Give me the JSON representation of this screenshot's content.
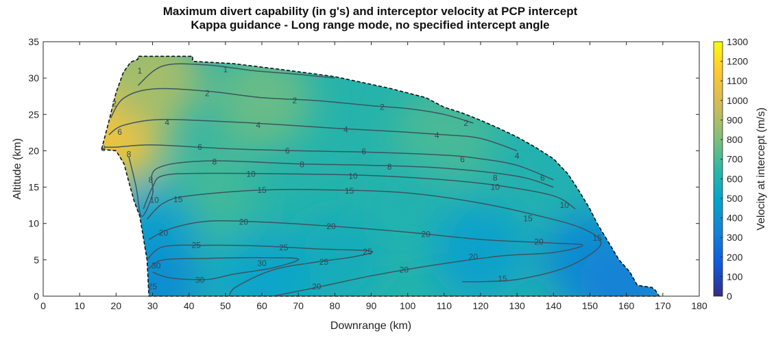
{
  "chart_data": {
    "type": "heatmap",
    "title": "Maximum divert capability (in g's) and interceptor velocity at PCP intercept",
    "subtitle": "Kappa guidance - Long range mode, no specified intercept angle",
    "xlabel": "Downrange (km)",
    "ylabel": "Altitude (km)",
    "xlim": [
      0,
      180
    ],
    "ylim": [
      0,
      35
    ],
    "xticks": [
      "0",
      "10",
      "20",
      "30",
      "40",
      "50",
      "60",
      "70",
      "80",
      "90",
      "100",
      "110",
      "120",
      "130",
      "140",
      "150",
      "160",
      "170",
      "180"
    ],
    "yticks": [
      "0",
      "5",
      "10",
      "15",
      "20",
      "25",
      "30",
      "35"
    ],
    "grid": false,
    "colorbar": {
      "label": "Velocity at intercept (m/s)",
      "range": [
        0,
        1300
      ],
      "ticks": [
        "0",
        "100",
        "200",
        "300",
        "400",
        "500",
        "600",
        "700",
        "800",
        "900",
        "1000",
        "1100",
        "1200",
        "1300"
      ],
      "colormap": "parula"
    },
    "coverage_boundary": [
      [
        16,
        20.2
      ],
      [
        18,
        24
      ],
      [
        20,
        28
      ],
      [
        22,
        30.8
      ],
      [
        24,
        32.2
      ],
      [
        26,
        32.6
      ],
      [
        26,
        33
      ],
      [
        41,
        33
      ],
      [
        41,
        32.3
      ],
      [
        52,
        32
      ],
      [
        65,
        31.2
      ],
      [
        80,
        30.2
      ],
      [
        95,
        28.6
      ],
      [
        105,
        27.3
      ],
      [
        110,
        26
      ],
      [
        115,
        25.2
      ],
      [
        120,
        24.2
      ],
      [
        125,
        23.1
      ],
      [
        130,
        21.9
      ],
      [
        135,
        20.5
      ],
      [
        140,
        18.9
      ],
      [
        144,
        16.8
      ],
      [
        147,
        14.5
      ],
      [
        150,
        12
      ],
      [
        152,
        10
      ],
      [
        155,
        7.5
      ],
      [
        158,
        5
      ],
      [
        161,
        3.3
      ],
      [
        163,
        1.5
      ],
      [
        167,
        1.2
      ],
      [
        168,
        0.8
      ],
      [
        169,
        0
      ],
      [
        29,
        0
      ],
      [
        28.5,
        5
      ],
      [
        27.5,
        8
      ],
      [
        26.5,
        11
      ],
      [
        25,
        13
      ],
      [
        23.6,
        15.5
      ],
      [
        22.2,
        18.2
      ],
      [
        20,
        20
      ],
      [
        18,
        20.1
      ],
      [
        16,
        20.2
      ]
    ],
    "velocity_anchors": [
      {
        "x": 22,
        "y": 26,
        "value": 1060
      },
      {
        "x": 19,
        "y": 22,
        "value": 1080
      },
      {
        "x": 30,
        "y": 30,
        "value": 880
      },
      {
        "x": 60,
        "y": 27,
        "value": 760
      },
      {
        "x": 110,
        "y": 22,
        "value": 700
      },
      {
        "x": 140,
        "y": 17,
        "value": 600
      },
      {
        "x": 45,
        "y": 15,
        "value": 690
      },
      {
        "x": 100,
        "y": 12,
        "value": 610
      },
      {
        "x": 30,
        "y": 8,
        "value": 480
      },
      {
        "x": 80,
        "y": 5,
        "value": 560
      },
      {
        "x": 60,
        "y": 2,
        "value": 500
      },
      {
        "x": 120,
        "y": 6,
        "value": 480
      },
      {
        "x": 150,
        "y": 5,
        "value": 380
      },
      {
        "x": 160,
        "y": 1,
        "value": 330
      },
      {
        "x": 30,
        "y": 1,
        "value": 390
      }
    ],
    "contours": [
      {
        "level": "1",
        "points": [
          [
            26,
            29
          ],
          [
            33,
            31.7
          ],
          [
            45,
            31.8
          ],
          [
            58,
            31
          ],
          [
            68,
            30.6
          ],
          [
            80,
            30
          ]
        ]
      },
      {
        "level": "2",
        "points": [
          [
            18.5,
            24.5
          ],
          [
            22,
            27.2
          ],
          [
            30,
            28.5
          ],
          [
            45,
            28.2
          ],
          [
            60,
            27.3
          ],
          [
            75,
            26.9
          ],
          [
            90,
            26.2
          ],
          [
            100,
            25.8
          ],
          [
            110,
            25
          ],
          [
            118,
            23.8
          ]
        ]
      },
      {
        "level": "4",
        "points": [
          [
            18,
            22.2
          ],
          [
            22,
            23.5
          ],
          [
            32,
            24.3
          ],
          [
            50,
            24
          ],
          [
            65,
            23.6
          ],
          [
            80,
            23.1
          ],
          [
            95,
            22.7
          ],
          [
            110,
            22.2
          ],
          [
            120,
            21.7
          ],
          [
            130,
            20
          ]
        ]
      },
      {
        "level": "6",
        "points": [
          [
            16.8,
            20.5
          ],
          [
            20,
            20.5
          ],
          [
            30,
            20.8
          ],
          [
            50,
            20.3
          ],
          [
            70,
            20
          ],
          [
            90,
            19.8
          ],
          [
            110,
            19.4
          ],
          [
            120,
            18.9
          ],
          [
            130,
            18
          ],
          [
            140,
            16
          ]
        ]
      },
      {
        "level": "8",
        "points": [
          [
            23.5,
            19.2
          ],
          [
            25.5,
            15
          ],
          [
            27,
            11
          ],
          [
            30,
            14
          ],
          [
            31,
            17.5
          ],
          [
            45,
            18.6
          ],
          [
            70,
            18.2
          ],
          [
            90,
            18
          ],
          [
            110,
            17.6
          ],
          [
            130,
            16.5
          ],
          [
            140,
            15
          ]
        ]
      },
      {
        "level": "10",
        "points": [
          [
            27.5,
            12
          ],
          [
            30,
            15
          ],
          [
            33,
            16.6
          ],
          [
            45,
            16.9
          ],
          [
            70,
            16.8
          ],
          [
            90,
            16.6
          ],
          [
            110,
            16
          ],
          [
            125,
            15.2
          ],
          [
            140,
            13.8
          ],
          [
            146,
            12
          ]
        ]
      },
      {
        "level": "15",
        "points": [
          [
            28.5,
            10.6
          ],
          [
            33,
            12.8
          ],
          [
            40,
            13.8
          ],
          [
            60,
            14.6
          ],
          [
            80,
            14.6
          ],
          [
            100,
            14.2
          ],
          [
            120,
            12.8
          ],
          [
            138,
            10.8
          ],
          [
            148,
            9.3
          ],
          [
            153,
            7.5
          ],
          [
            150,
            5.7
          ],
          [
            142,
            3.7
          ],
          [
            130,
            2.3
          ],
          [
            120,
            2
          ],
          [
            115,
            2
          ]
        ]
      },
      {
        "level": "20",
        "points": [
          [
            29,
            7.8
          ],
          [
            35,
            9.3
          ],
          [
            45,
            10.3
          ],
          [
            60,
            10.2
          ],
          [
            80,
            9.6
          ],
          [
            100,
            8.8
          ],
          [
            120,
            7.8
          ],
          [
            140,
            7.3
          ],
          [
            148,
            7
          ],
          [
            140,
            6
          ],
          [
            125,
            5.5
          ],
          [
            105,
            4.1
          ],
          [
            90,
            2.8
          ],
          [
            75,
            1.2
          ],
          [
            63,
            0
          ]
        ]
      },
      {
        "level": "25",
        "points": [
          [
            28.5,
            5
          ],
          [
            33,
            6.8
          ],
          [
            45,
            7
          ],
          [
            60,
            6.9
          ],
          [
            75,
            6.5
          ],
          [
            90,
            6.2
          ],
          [
            85,
            5.4
          ],
          [
            75,
            4.7
          ],
          [
            63,
            3.6
          ],
          [
            53,
            1.3
          ],
          [
            51,
            0
          ]
        ]
      },
      {
        "level": "30",
        "points": [
          [
            29,
            3.8
          ],
          [
            33,
            5
          ],
          [
            45,
            5.2
          ],
          [
            60,
            5.3
          ],
          [
            70,
            5.1
          ],
          [
            63,
            3.9
          ],
          [
            52,
            3
          ],
          [
            45,
            2.3
          ],
          [
            35,
            2.5
          ],
          [
            30,
            3.3
          ]
        ]
      }
    ],
    "contour_labels": [
      {
        "text": "1",
        "x": 26.5,
        "y": 31
      },
      {
        "text": "1",
        "x": 50,
        "y": 31.2
      },
      {
        "text": "2",
        "x": 19.5,
        "y": 26.5
      },
      {
        "text": "2",
        "x": 45,
        "y": 27.9
      },
      {
        "text": "2",
        "x": 69,
        "y": 26.9
      },
      {
        "text": "2",
        "x": 93,
        "y": 26
      },
      {
        "text": "2",
        "x": 116,
        "y": 23.8
      },
      {
        "text": "4",
        "x": 34,
        "y": 23.9
      },
      {
        "text": "4",
        "x": 59,
        "y": 23.5
      },
      {
        "text": "4",
        "x": 83,
        "y": 22.9
      },
      {
        "text": "4",
        "x": 108,
        "y": 22.1
      },
      {
        "text": "4",
        "x": 130,
        "y": 19.3
      },
      {
        "text": "6",
        "x": 21,
        "y": 22.6
      },
      {
        "text": "6",
        "x": 43,
        "y": 20.5
      },
      {
        "text": "6",
        "x": 67,
        "y": 20
      },
      {
        "text": "6",
        "x": 88,
        "y": 19.9
      },
      {
        "text": "6",
        "x": 115,
        "y": 18.8
      },
      {
        "text": "6",
        "x": 137,
        "y": 16.3
      },
      {
        "text": "8",
        "x": 16.5,
        "y": 20.3
      },
      {
        "text": "8",
        "x": 23.5,
        "y": 19.5
      },
      {
        "text": "8",
        "x": 29.5,
        "y": 16
      },
      {
        "text": "8",
        "x": 47,
        "y": 18.5
      },
      {
        "text": "8",
        "x": 71,
        "y": 18.1
      },
      {
        "text": "8",
        "x": 95,
        "y": 17.8
      },
      {
        "text": "8",
        "x": 124,
        "y": 16.3
      },
      {
        "text": "10",
        "x": 30.5,
        "y": 13.2
      },
      {
        "text": "10",
        "x": 57,
        "y": 16.8
      },
      {
        "text": "10",
        "x": 85,
        "y": 16.5
      },
      {
        "text": "10",
        "x": 124,
        "y": 15
      },
      {
        "text": "10",
        "x": 143,
        "y": 12.5
      },
      {
        "text": "15",
        "x": 37,
        "y": 13.3
      },
      {
        "text": "15",
        "x": 60,
        "y": 14.6
      },
      {
        "text": "15",
        "x": 84,
        "y": 14.5
      },
      {
        "text": "15",
        "x": 133,
        "y": 10.7
      },
      {
        "text": "15",
        "x": 152,
        "y": 8
      },
      {
        "text": "15",
        "x": 126,
        "y": 2.4
      },
      {
        "text": "20",
        "x": 33,
        "y": 8.7
      },
      {
        "text": "20",
        "x": 55,
        "y": 10.2
      },
      {
        "text": "20",
        "x": 79,
        "y": 9.6
      },
      {
        "text": "20",
        "x": 105,
        "y": 8.5
      },
      {
        "text": "20",
        "x": 136,
        "y": 7.5
      },
      {
        "text": "20",
        "x": 118,
        "y": 5.4
      },
      {
        "text": "20",
        "x": 99,
        "y": 3.6
      },
      {
        "text": "20",
        "x": 75,
        "y": 1.3
      },
      {
        "text": "25",
        "x": 42,
        "y": 7
      },
      {
        "text": "25",
        "x": 66,
        "y": 6.7
      },
      {
        "text": "25",
        "x": 89,
        "y": 6.1
      },
      {
        "text": "25",
        "x": 77,
        "y": 4.7
      },
      {
        "text": "25",
        "x": 30,
        "y": 1.3
      },
      {
        "text": "30",
        "x": 31,
        "y": 4.2
      },
      {
        "text": "30",
        "x": 60,
        "y": 4.5
      },
      {
        "text": "30",
        "x": 43,
        "y": 2.2
      }
    ]
  }
}
